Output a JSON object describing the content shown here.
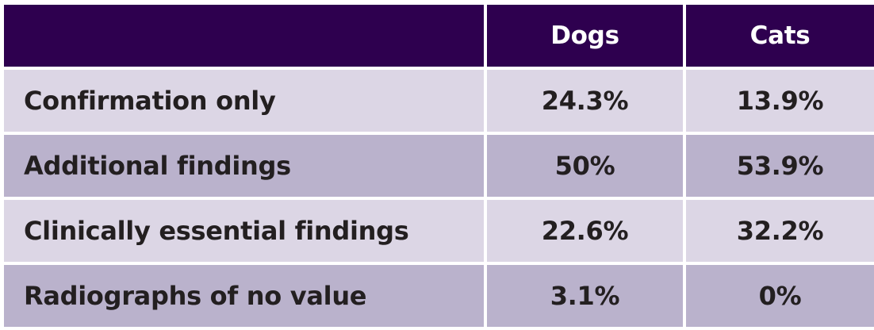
{
  "chart_data": {
    "type": "table",
    "columns": [
      "",
      "Dogs",
      "Cats"
    ],
    "rows": [
      {
        "label": "Confirmation only",
        "dogs": "24.3%",
        "cats": "13.9%"
      },
      {
        "label": "Additional findings",
        "dogs": "50%",
        "cats": "53.9%"
      },
      {
        "label": "Clinically essential findings",
        "dogs": "22.6%",
        "cats": "32.2%"
      },
      {
        "label": "Radiographs of no value",
        "dogs": "3.1%",
        "cats": "0%"
      }
    ]
  },
  "colors": {
    "header_bg": "#2e004f",
    "header_text": "#ffffff",
    "row_light": "#dcd6e5",
    "row_dark": "#bab2cc",
    "body_text": "#231f20"
  }
}
